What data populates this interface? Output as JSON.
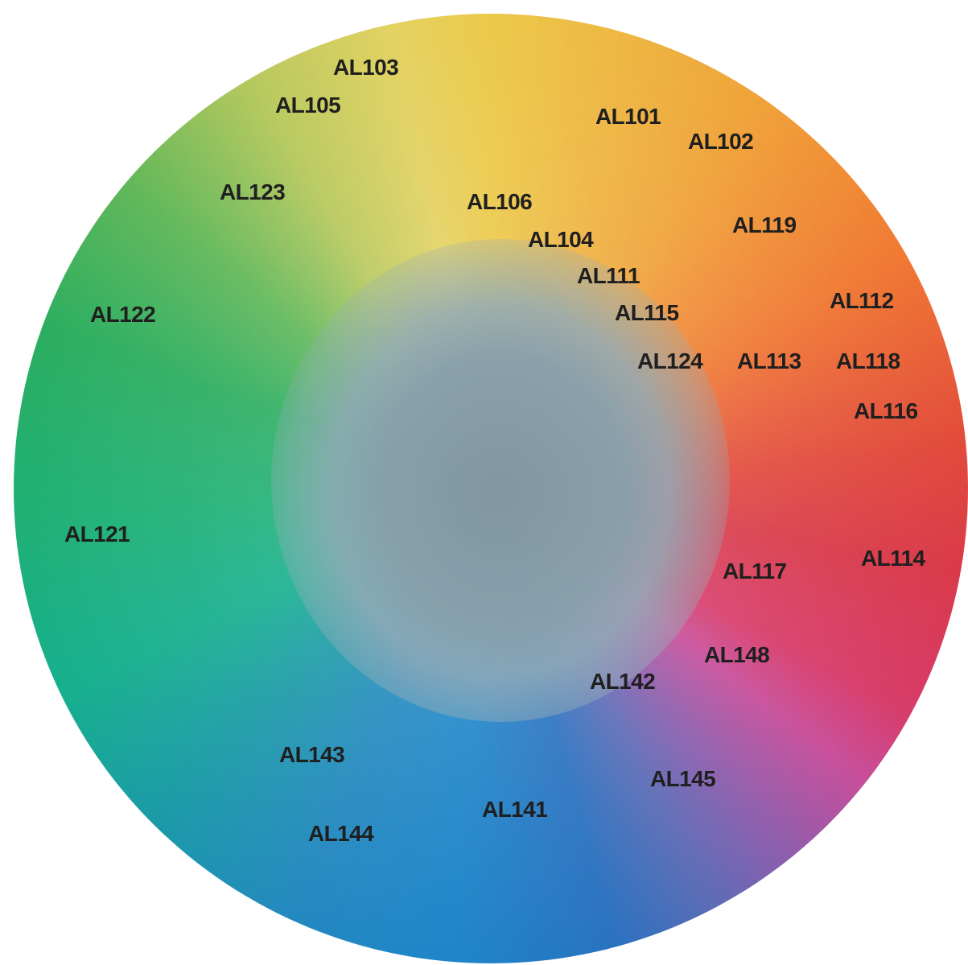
{
  "colors": {
    "label_text": "#1f1f1f",
    "center": "#8397a4",
    "yellow": "#ecc94a",
    "orange": "#f07a33",
    "red": "#d93a4a",
    "magenta": "#c84e9a",
    "purple": "#8a5fae",
    "blue": "#1e86c9",
    "teal": "#17b08e",
    "green": "#2cae60",
    "lime": "#b8c95e"
  },
  "labels": [
    {
      "id": "AL103",
      "text": "AL103"
    },
    {
      "id": "AL105",
      "text": "AL105"
    },
    {
      "id": "AL101",
      "text": "AL101"
    },
    {
      "id": "AL102",
      "text": "AL102"
    },
    {
      "id": "AL123",
      "text": "AL123"
    },
    {
      "id": "AL106",
      "text": "AL106"
    },
    {
      "id": "AL104",
      "text": "AL104"
    },
    {
      "id": "AL119",
      "text": "AL119"
    },
    {
      "id": "AL111",
      "text": "AL111"
    },
    {
      "id": "AL112",
      "text": "AL112"
    },
    {
      "id": "AL122",
      "text": "AL122"
    },
    {
      "id": "AL115",
      "text": "AL115"
    },
    {
      "id": "AL124",
      "text": "AL124"
    },
    {
      "id": "AL113",
      "text": "AL113"
    },
    {
      "id": "AL118",
      "text": "AL118"
    },
    {
      "id": "AL116",
      "text": "AL116"
    },
    {
      "id": "AL121",
      "text": "AL121"
    },
    {
      "id": "AL114",
      "text": "AL114"
    },
    {
      "id": "AL117",
      "text": "AL117"
    },
    {
      "id": "AL148",
      "text": "AL148"
    },
    {
      "id": "AL142",
      "text": "AL142"
    },
    {
      "id": "AL143",
      "text": "AL143"
    },
    {
      "id": "AL145",
      "text": "AL145"
    },
    {
      "id": "AL141",
      "text": "AL141"
    },
    {
      "id": "AL144",
      "text": "AL144"
    }
  ]
}
